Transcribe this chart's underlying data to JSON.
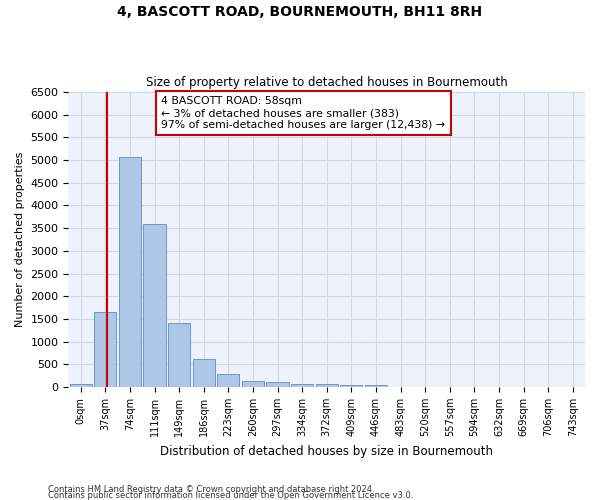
{
  "title": "4, BASCOTT ROAD, BOURNEMOUTH, BH11 8RH",
  "subtitle": "Size of property relative to detached houses in Bournemouth",
  "xlabel": "Distribution of detached houses by size in Bournemouth",
  "ylabel": "Number of detached properties",
  "footer_line1": "Contains HM Land Registry data © Crown copyright and database right 2024.",
  "footer_line2": "Contains public sector information licensed under the Open Government Licence v3.0.",
  "bar_categories": [
    "0sqm",
    "37sqm",
    "74sqm",
    "111sqm",
    "149sqm",
    "186sqm",
    "223sqm",
    "260sqm",
    "297sqm",
    "334sqm",
    "372sqm",
    "409sqm",
    "446sqm",
    "483sqm",
    "520sqm",
    "557sqm",
    "594sqm",
    "632sqm",
    "669sqm",
    "706sqm",
    "743sqm"
  ],
  "bar_values": [
    60,
    1650,
    5060,
    3590,
    1410,
    620,
    290,
    135,
    100,
    75,
    55,
    45,
    40,
    0,
    0,
    0,
    0,
    0,
    0,
    0,
    0
  ],
  "bar_color": "#aec6e8",
  "bar_edge_color": "#5a8fc0",
  "grid_color": "#d0d8e8",
  "background_color": "#eef2fb",
  "vline_color": "#cc0000",
  "annotation_text": "4 BASCOTT ROAD: 58sqm\n← 3% of detached houses are smaller (383)\n97% of semi-detached houses are larger (12,438) →",
  "annotation_box_color": "#ffffff",
  "annotation_box_edge": "#cc0000",
  "ylim": [
    0,
    6500
  ],
  "yticks": [
    0,
    500,
    1000,
    1500,
    2000,
    2500,
    3000,
    3500,
    4000,
    4500,
    5000,
    5500,
    6000,
    6500
  ]
}
